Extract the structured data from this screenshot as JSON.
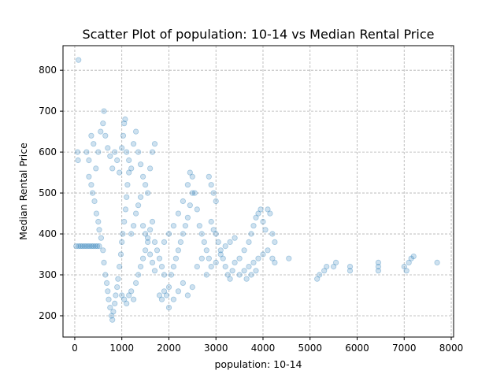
{
  "chart_data": {
    "type": "scatter",
    "title": "Scatter Plot of population: 10-14 vs Median Rental Price",
    "xlabel": "population: 10-14",
    "ylabel": "Median Rental Price",
    "xlim": [
      -250,
      8050
    ],
    "ylim": [
      148,
      860
    ],
    "xticks": [
      0,
      1000,
      2000,
      3000,
      4000,
      5000,
      6000,
      7000,
      8000
    ],
    "yticks": [
      200,
      300,
      400,
      500,
      600,
      700,
      800
    ],
    "grid": true,
    "color": "#1f77b4",
    "points": [
      [
        80,
        825
      ],
      [
        60,
        600
      ],
      [
        70,
        580
      ],
      [
        30,
        370
      ],
      [
        80,
        370
      ],
      [
        120,
        370
      ],
      [
        160,
        370
      ],
      [
        200,
        370
      ],
      [
        240,
        370
      ],
      [
        280,
        370
      ],
      [
        320,
        370
      ],
      [
        360,
        370
      ],
      [
        400,
        370
      ],
      [
        440,
        370
      ],
      [
        480,
        370
      ],
      [
        520,
        370
      ],
      [
        250,
        600
      ],
      [
        300,
        580
      ],
      [
        350,
        640
      ],
      [
        400,
        620
      ],
      [
        450,
        560
      ],
      [
        500,
        600
      ],
      [
        550,
        650
      ],
      [
        600,
        670
      ],
      [
        620,
        700
      ],
      [
        650,
        640
      ],
      [
        700,
        610
      ],
      [
        750,
        590
      ],
      [
        800,
        560
      ],
      [
        850,
        600
      ],
      [
        900,
        580
      ],
      [
        950,
        550
      ],
      [
        300,
        540
      ],
      [
        350,
        520
      ],
      [
        380,
        500
      ],
      [
        420,
        480
      ],
      [
        460,
        450
      ],
      [
        500,
        430
      ],
      [
        520,
        410
      ],
      [
        560,
        390
      ],
      [
        600,
        360
      ],
      [
        620,
        330
      ],
      [
        650,
        300
      ],
      [
        680,
        280
      ],
      [
        700,
        260
      ],
      [
        720,
        240
      ],
      [
        750,
        220
      ],
      [
        780,
        200
      ],
      [
        800,
        190
      ],
      [
        820,
        210
      ],
      [
        850,
        230
      ],
      [
        870,
        250
      ],
      [
        900,
        270
      ],
      [
        920,
        290
      ],
      [
        950,
        320
      ],
      [
        980,
        350
      ],
      [
        1000,
        380
      ],
      [
        1020,
        400
      ],
      [
        1050,
        430
      ],
      [
        1080,
        460
      ],
      [
        1100,
        490
      ],
      [
        1120,
        520
      ],
      [
        1150,
        550
      ],
      [
        1000,
        610
      ],
      [
        1030,
        640
      ],
      [
        1050,
        670
      ],
      [
        1070,
        680
      ],
      [
        1100,
        600
      ],
      [
        1150,
        580
      ],
      [
        1200,
        560
      ],
      [
        1250,
        620
      ],
      [
        1300,
        650
      ],
      [
        1350,
        600
      ],
      [
        1400,
        570
      ],
      [
        1450,
        540
      ],
      [
        1500,
        520
      ],
      [
        1550,
        500
      ],
      [
        1600,
        560
      ],
      [
        1650,
        600
      ],
      [
        1700,
        620
      ],
      [
        1000,
        250
      ],
      [
        1050,
        240
      ],
      [
        1100,
        230
      ],
      [
        1150,
        250
      ],
      [
        1200,
        260
      ],
      [
        1250,
        240
      ],
      [
        1300,
        280
      ],
      [
        1350,
        300
      ],
      [
        1400,
        320
      ],
      [
        1450,
        340
      ],
      [
        1500,
        360
      ],
      [
        1550,
        380
      ],
      [
        1600,
        350
      ],
      [
        1650,
        330
      ],
      [
        1700,
        310
      ],
      [
        1200,
        400
      ],
      [
        1250,
        420
      ],
      [
        1300,
        450
      ],
      [
        1350,
        470
      ],
      [
        1400,
        490
      ],
      [
        1450,
        420
      ],
      [
        1500,
        400
      ],
      [
        1550,
        390
      ],
      [
        1600,
        410
      ],
      [
        1650,
        430
      ],
      [
        1700,
        380
      ],
      [
        1750,
        360
      ],
      [
        1800,
        340
      ],
      [
        1850,
        320
      ],
      [
        1900,
        300
      ],
      [
        1800,
        250
      ],
      [
        1850,
        240
      ],
      [
        1900,
        260
      ],
      [
        1950,
        250
      ],
      [
        2000,
        270
      ],
      [
        2050,
        300
      ],
      [
        2100,
        320
      ],
      [
        2150,
        340
      ],
      [
        2200,
        360
      ],
      [
        2250,
        380
      ],
      [
        2300,
        400
      ],
      [
        2350,
        420
      ],
      [
        2400,
        440
      ],
      [
        2450,
        470
      ],
      [
        2500,
        500
      ],
      [
        1900,
        380
      ],
      [
        2000,
        400
      ],
      [
        2100,
        420
      ],
      [
        2200,
        450
      ],
      [
        2300,
        480
      ],
      [
        2400,
        520
      ],
      [
        2450,
        550
      ],
      [
        2500,
        540
      ],
      [
        2550,
        500
      ],
      [
        2600,
        460
      ],
      [
        2650,
        420
      ],
      [
        2700,
        400
      ],
      [
        2750,
        380
      ],
      [
        2800,
        360
      ],
      [
        2850,
        340
      ],
      [
        2000,
        220
      ],
      [
        2100,
        240
      ],
      [
        2200,
        260
      ],
      [
        2300,
        280
      ],
      [
        2400,
        250
      ],
      [
        2500,
        270
      ],
      [
        2600,
        320
      ],
      [
        2700,
        340
      ],
      [
        2800,
        300
      ],
      [
        2900,
        320
      ],
      [
        3000,
        330
      ],
      [
        3100,
        350
      ],
      [
        3200,
        370
      ],
      [
        3300,
        380
      ],
      [
        3400,
        390
      ],
      [
        2850,
        540
      ],
      [
        2900,
        520
      ],
      [
        2950,
        500
      ],
      [
        3000,
        480
      ],
      [
        2900,
        430
      ],
      [
        2950,
        410
      ],
      [
        3000,
        400
      ],
      [
        3050,
        380
      ],
      [
        3100,
        360
      ],
      [
        3150,
        340
      ],
      [
        3200,
        320
      ],
      [
        3250,
        300
      ],
      [
        3300,
        290
      ],
      [
        3350,
        310
      ],
      [
        3400,
        330
      ],
      [
        3500,
        340
      ],
      [
        3600,
        360
      ],
      [
        3700,
        380
      ],
      [
        3750,
        400
      ],
      [
        3800,
        420
      ],
      [
        3850,
        440
      ],
      [
        3900,
        450
      ],
      [
        3950,
        460
      ],
      [
        4000,
        430
      ],
      [
        4050,
        410
      ],
      [
        4100,
        460
      ],
      [
        4150,
        450
      ],
      [
        4200,
        400
      ],
      [
        4250,
        380
      ],
      [
        4250,
        330
      ],
      [
        3500,
        300
      ],
      [
        3600,
        310
      ],
      [
        3700,
        320
      ],
      [
        3800,
        330
      ],
      [
        3900,
        340
      ],
      [
        4000,
        350
      ],
      [
        4100,
        360
      ],
      [
        4200,
        340
      ],
      [
        3650,
        290
      ],
      [
        3750,
        300
      ],
      [
        3850,
        310
      ],
      [
        4550,
        340
      ],
      [
        5150,
        290
      ],
      [
        5200,
        300
      ],
      [
        5300,
        310
      ],
      [
        5350,
        320
      ],
      [
        5500,
        320
      ],
      [
        5550,
        330
      ],
      [
        5850,
        310
      ],
      [
        5850,
        320
      ],
      [
        6450,
        310
      ],
      [
        6450,
        320
      ],
      [
        6450,
        330
      ],
      [
        7000,
        320
      ],
      [
        7050,
        310
      ],
      [
        7100,
        330
      ],
      [
        7150,
        340
      ],
      [
        7200,
        345
      ],
      [
        7700,
        330
      ]
    ]
  }
}
